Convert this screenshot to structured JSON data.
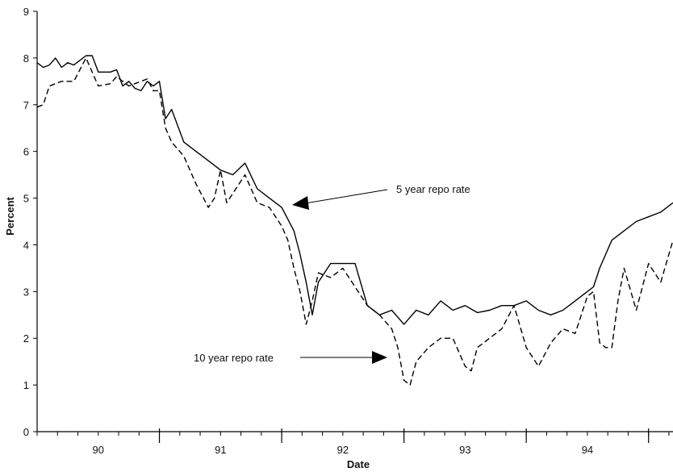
{
  "chart_data": {
    "type": "line",
    "xlabel": "Date",
    "ylabel": "Percent",
    "ylim": [
      0,
      9
    ],
    "xlim": [
      1989.5,
      1994.7
    ],
    "y_ticks": [
      0,
      1,
      2,
      3,
      4,
      5,
      6,
      7,
      8,
      9
    ],
    "x_tick_labels": [
      {
        "label": "90",
        "x": 1990
      },
      {
        "label": "91",
        "x": 1991
      },
      {
        "label": "92",
        "x": 1992
      },
      {
        "label": "93",
        "x": 1993
      },
      {
        "label": "94",
        "x": 1994
      }
    ],
    "grid": false,
    "legend": "none",
    "series": [
      {
        "style": "solid",
        "x": [
          1989.5,
          1989.55,
          1989.6,
          1989.65,
          1989.7,
          1989.75,
          1989.8,
          1989.85,
          1989.9,
          1989.95,
          1990.0,
          1990.1,
          1990.15,
          1990.2,
          1990.25,
          1990.3,
          1990.35,
          1990.4,
          1990.45,
          1990.5,
          1990.55,
          1990.6,
          1990.7,
          1990.8,
          1990.9,
          1991.0,
          1991.1,
          1991.2,
          1991.3,
          1991.4,
          1991.5,
          1991.6,
          1991.65,
          1991.7,
          1991.75,
          1991.8,
          1991.9,
          1992.0,
          1992.1,
          1992.2,
          1992.3,
          1992.4,
          1992.5,
          1992.6,
          1992.7,
          1992.8,
          1992.9,
          1993.0,
          1993.1,
          1993.2,
          1993.3,
          1993.4,
          1993.5,
          1993.6,
          1993.7,
          1993.8,
          1993.9,
          1994.0,
          1994.05,
          1994.1,
          1994.2,
          1994.3,
          1994.4,
          1994.5,
          1994.6,
          1994.7
        ],
        "y": [
          7.9,
          7.8,
          7.85,
          8.0,
          7.8,
          7.9,
          7.85,
          7.95,
          8.05,
          8.05,
          7.7,
          7.7,
          7.75,
          7.4,
          7.5,
          7.35,
          7.3,
          7.5,
          7.4,
          7.5,
          6.7,
          6.9,
          6.2,
          6.0,
          5.8,
          5.6,
          5.5,
          5.75,
          5.2,
          5.0,
          4.8,
          4.3,
          3.8,
          3.2,
          2.5,
          3.2,
          3.6,
          3.6,
          3.6,
          2.7,
          2.5,
          2.6,
          2.3,
          2.6,
          2.5,
          2.8,
          2.6,
          2.7,
          2.55,
          2.6,
          2.7,
          2.7,
          2.8,
          2.6,
          2.5,
          2.6,
          2.8,
          3.0,
          3.1,
          3.5,
          4.1,
          4.3,
          4.5,
          4.6,
          4.7,
          4.9
        ]
      },
      {
        "style": "dashed",
        "x": [
          1989.5,
          1989.55,
          1989.6,
          1989.7,
          1989.8,
          1989.9,
          1990.0,
          1990.1,
          1990.15,
          1990.2,
          1990.25,
          1990.3,
          1990.35,
          1990.4,
          1990.45,
          1990.5,
          1990.55,
          1990.6,
          1990.7,
          1990.8,
          1990.9,
          1990.95,
          1991.0,
          1991.05,
          1991.1,
          1991.2,
          1991.3,
          1991.4,
          1991.5,
          1991.55,
          1991.6,
          1991.65,
          1991.7,
          1991.75,
          1991.8,
          1991.9,
          1992.0,
          1992.1,
          1992.2,
          1992.3,
          1992.4,
          1992.45,
          1992.5,
          1992.55,
          1992.6,
          1992.7,
          1992.8,
          1992.9,
          1993.0,
          1993.05,
          1993.1,
          1993.2,
          1993.3,
          1993.4,
          1993.5,
          1993.55,
          1993.6,
          1993.7,
          1993.8,
          1993.9,
          1994.0,
          1994.05,
          1994.1,
          1994.15,
          1994.2,
          1994.25,
          1994.3,
          1994.4,
          1994.5,
          1994.6,
          1994.7
        ],
        "y": [
          6.95,
          7.0,
          7.4,
          7.5,
          7.5,
          8.0,
          7.4,
          7.45,
          7.6,
          7.5,
          7.4,
          7.45,
          7.5,
          7.55,
          7.3,
          7.3,
          6.5,
          6.2,
          5.9,
          5.3,
          4.8,
          5.0,
          5.6,
          4.9,
          5.1,
          5.5,
          4.9,
          4.8,
          4.4,
          4.1,
          3.5,
          3.0,
          2.3,
          2.8,
          3.4,
          3.3,
          3.5,
          3.1,
          2.7,
          2.5,
          2.2,
          1.8,
          1.1,
          1.0,
          1.5,
          1.8,
          2.0,
          2.0,
          1.4,
          1.3,
          1.8,
          2.0,
          2.2,
          2.7,
          1.8,
          1.6,
          1.4,
          1.9,
          2.2,
          2.1,
          2.9,
          3.0,
          1.9,
          1.8,
          1.8,
          2.8,
          3.5,
          2.6,
          3.6,
          3.2,
          4.1
        ]
      }
    ],
    "annotations": [
      {
        "text": "5 year repo rate"
      },
      {
        "text": "10 year repo rate"
      }
    ]
  }
}
